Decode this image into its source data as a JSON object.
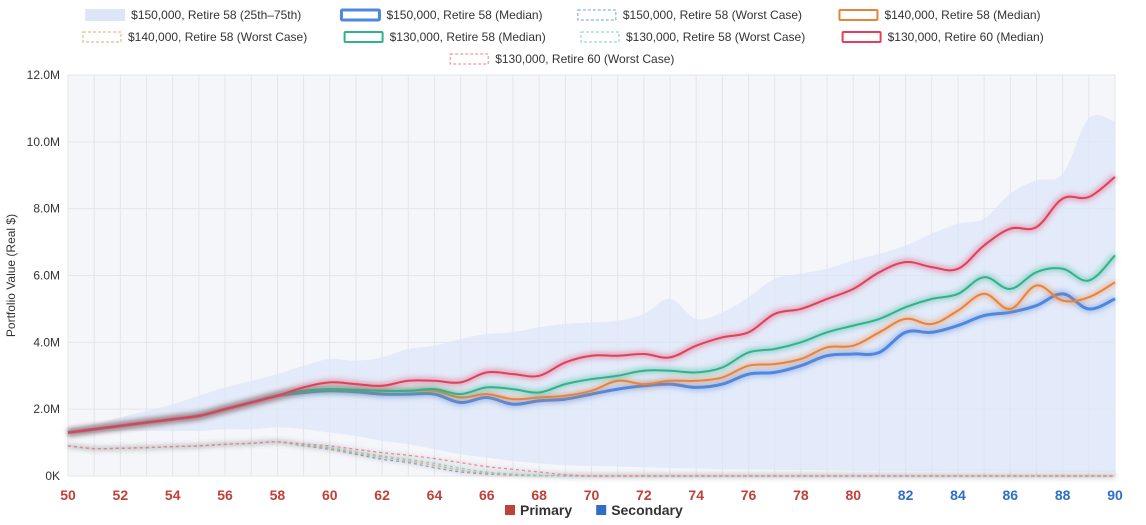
{
  "chart_data": {
    "type": "line",
    "ylabel": "Portfolio Value (Real $)",
    "ylim": [
      0,
      12000000
    ],
    "yticks": [
      {
        "value": 0,
        "label": "0K"
      },
      {
        "value": 2000000,
        "label": "2.0M"
      },
      {
        "value": 4000000,
        "label": "4.0M"
      },
      {
        "value": 6000000,
        "label": "6.0M"
      },
      {
        "value": 8000000,
        "label": "8.0M"
      },
      {
        "value": 10000000,
        "label": "10.0M"
      },
      {
        "value": 12000000,
        "label": "12.0M"
      }
    ],
    "x": [
      50,
      51,
      52,
      53,
      54,
      55,
      56,
      57,
      58,
      59,
      60,
      61,
      62,
      63,
      64,
      65,
      66,
      67,
      68,
      69,
      70,
      71,
      72,
      73,
      74,
      75,
      76,
      77,
      78,
      79,
      80,
      81,
      82,
      83,
      84,
      85,
      86,
      87,
      88,
      89,
      90
    ],
    "xticks": [
      50,
      52,
      54,
      56,
      58,
      60,
      62,
      64,
      66,
      68,
      70,
      72,
      74,
      76,
      78,
      80,
      82,
      84,
      86,
      88,
      90
    ],
    "grid": true,
    "band": {
      "name": "$150,000, Retire 58 (25th–75th)",
      "color": "#dce6f8",
      "upper": [
        1400000,
        1550000,
        1750000,
        1950000,
        2150000,
        2400000,
        2650000,
        2850000,
        3050000,
        3300000,
        3500000,
        3450000,
        3550000,
        3800000,
        3900000,
        4100000,
        4250000,
        4300000,
        4450000,
        4550000,
        4600000,
        4650000,
        4850000,
        5300000,
        4700000,
        4900000,
        5350000,
        5900000,
        6050000,
        6200000,
        6450000,
        6650000,
        6900000,
        7250000,
        7550000,
        7700000,
        8450000,
        8850000,
        9050000,
        10700000,
        10600000
      ],
      "lower": [
        1250000,
        1300000,
        1350000,
        1350000,
        1350000,
        1350000,
        1400000,
        1400000,
        1450000,
        1400000,
        1300000,
        1200000,
        1050000,
        950000,
        800000,
        650000,
        550000,
        450000,
        380000,
        320000,
        300000,
        280000,
        260000,
        240000,
        220000,
        210000,
        200000,
        190000,
        180000,
        170000,
        160000,
        160000,
        150000,
        150000,
        140000,
        140000,
        130000,
        130000,
        120000,
        120000,
        110000
      ]
    },
    "series": [
      {
        "name": "$150,000, Retire 58 (Median)",
        "color": "#4f87e0",
        "width": 3,
        "dash": false,
        "values": [
          1300000,
          1400000,
          1500000,
          1600000,
          1700000,
          1800000,
          2000000,
          2200000,
          2400000,
          2500000,
          2550000,
          2520000,
          2450000,
          2450000,
          2450000,
          2200000,
          2350000,
          2150000,
          2250000,
          2300000,
          2450000,
          2600000,
          2700000,
          2750000,
          2650000,
          2750000,
          3050000,
          3100000,
          3300000,
          3600000,
          3650000,
          3700000,
          4300000,
          4300000,
          4500000,
          4800000,
          4900000,
          5100000,
          5450000,
          5000000,
          5300000
        ]
      },
      {
        "name": "$150,000, Retire 58 (Worst Case)",
        "color": "#6fa3d8",
        "width": 1,
        "dash": true,
        "values": [
          900000,
          820000,
          830000,
          850000,
          880000,
          900000,
          950000,
          980000,
          1020000,
          900000,
          800000,
          650000,
          500000,
          400000,
          250000,
          120000,
          60000,
          30000,
          10000,
          0,
          0,
          0,
          0,
          0,
          0,
          0,
          0,
          0,
          0,
          0,
          0,
          0,
          0,
          0,
          0,
          0,
          0,
          0,
          0,
          0,
          0
        ]
      },
      {
        "name": "$140,000, Retire 58 (Median)",
        "color": "#e8833a",
        "width": 2,
        "dash": false,
        "values": [
          1300000,
          1400000,
          1500000,
          1600000,
          1700000,
          1800000,
          2000000,
          2200000,
          2400000,
          2550000,
          2600000,
          2580000,
          2550000,
          2550000,
          2550000,
          2350000,
          2450000,
          2300000,
          2350000,
          2400000,
          2550000,
          2850000,
          2750000,
          2850000,
          2850000,
          2950000,
          3300000,
          3350000,
          3500000,
          3850000,
          3900000,
          4300000,
          4700000,
          4550000,
          4950000,
          5450000,
          5000000,
          5700000,
          5250000,
          5350000,
          5800000
        ]
      },
      {
        "name": "$140,000, Retire 58 (Worst Case)",
        "color": "#e8a86a",
        "width": 1,
        "dash": true,
        "values": [
          900000,
          820000,
          830000,
          850000,
          880000,
          900000,
          950000,
          980000,
          1020000,
          920000,
          820000,
          680000,
          560000,
          450000,
          320000,
          170000,
          80000,
          40000,
          15000,
          0,
          0,
          0,
          0,
          0,
          0,
          0,
          0,
          0,
          0,
          0,
          0,
          0,
          0,
          0,
          0,
          0,
          0,
          0,
          0,
          0,
          0
        ]
      },
      {
        "name": "$130,000, Retire 58 (Median)",
        "color": "#2fb38a",
        "width": 2,
        "dash": false,
        "values": [
          1300000,
          1400000,
          1500000,
          1600000,
          1700000,
          1800000,
          2000000,
          2200000,
          2400000,
          2550000,
          2600000,
          2580000,
          2550000,
          2550000,
          2600000,
          2450000,
          2650000,
          2600000,
          2500000,
          2750000,
          2900000,
          3000000,
          3150000,
          3150000,
          3100000,
          3250000,
          3700000,
          3800000,
          4000000,
          4300000,
          4500000,
          4700000,
          5050000,
          5300000,
          5450000,
          5950000,
          5600000,
          6100000,
          6200000,
          5850000,
          6600000
        ]
      },
      {
        "name": "$130,000, Retire 58 (Worst Case)",
        "color": "#7fd3c0",
        "width": 1,
        "dash": true,
        "values": [
          900000,
          820000,
          830000,
          850000,
          880000,
          900000,
          950000,
          980000,
          1020000,
          940000,
          850000,
          720000,
          600000,
          500000,
          380000,
          230000,
          120000,
          60000,
          20000,
          0,
          0,
          0,
          0,
          0,
          0,
          0,
          0,
          0,
          0,
          0,
          0,
          0,
          0,
          0,
          0,
          0,
          0,
          0,
          0,
          0,
          0
        ]
      },
      {
        "name": "$130,000, Retire 60 (Median)",
        "color": "#e0405c",
        "width": 2,
        "dash": false,
        "values": [
          1300000,
          1400000,
          1500000,
          1600000,
          1700000,
          1800000,
          2000000,
          2200000,
          2400000,
          2650000,
          2800000,
          2750000,
          2700000,
          2850000,
          2850000,
          2800000,
          3100000,
          3050000,
          3000000,
          3400000,
          3600000,
          3600000,
          3650000,
          3550000,
          3900000,
          4150000,
          4300000,
          4850000,
          5000000,
          5300000,
          5600000,
          6100000,
          6400000,
          6250000,
          6200000,
          6900000,
          7400000,
          7450000,
          8300000,
          8350000,
          8950000
        ]
      },
      {
        "name": "$130,000, Retire 60 (Worst Case)",
        "color": "#ef7f94",
        "width": 1,
        "dash": true,
        "values": [
          900000,
          820000,
          830000,
          850000,
          880000,
          900000,
          950000,
          980000,
          1020000,
          960000,
          900000,
          800000,
          700000,
          620000,
          520000,
          400000,
          280000,
          200000,
          120000,
          40000,
          0,
          0,
          0,
          0,
          0,
          0,
          0,
          0,
          0,
          0,
          0,
          0,
          0,
          0,
          0,
          0,
          0,
          0,
          0,
          0,
          0
        ]
      }
    ],
    "phase_legend": [
      {
        "label": "Primary",
        "color": "#c0403a"
      },
      {
        "label": "Secondary",
        "color": "#2f6ec6"
      }
    ],
    "phase_change_age": 82
  }
}
